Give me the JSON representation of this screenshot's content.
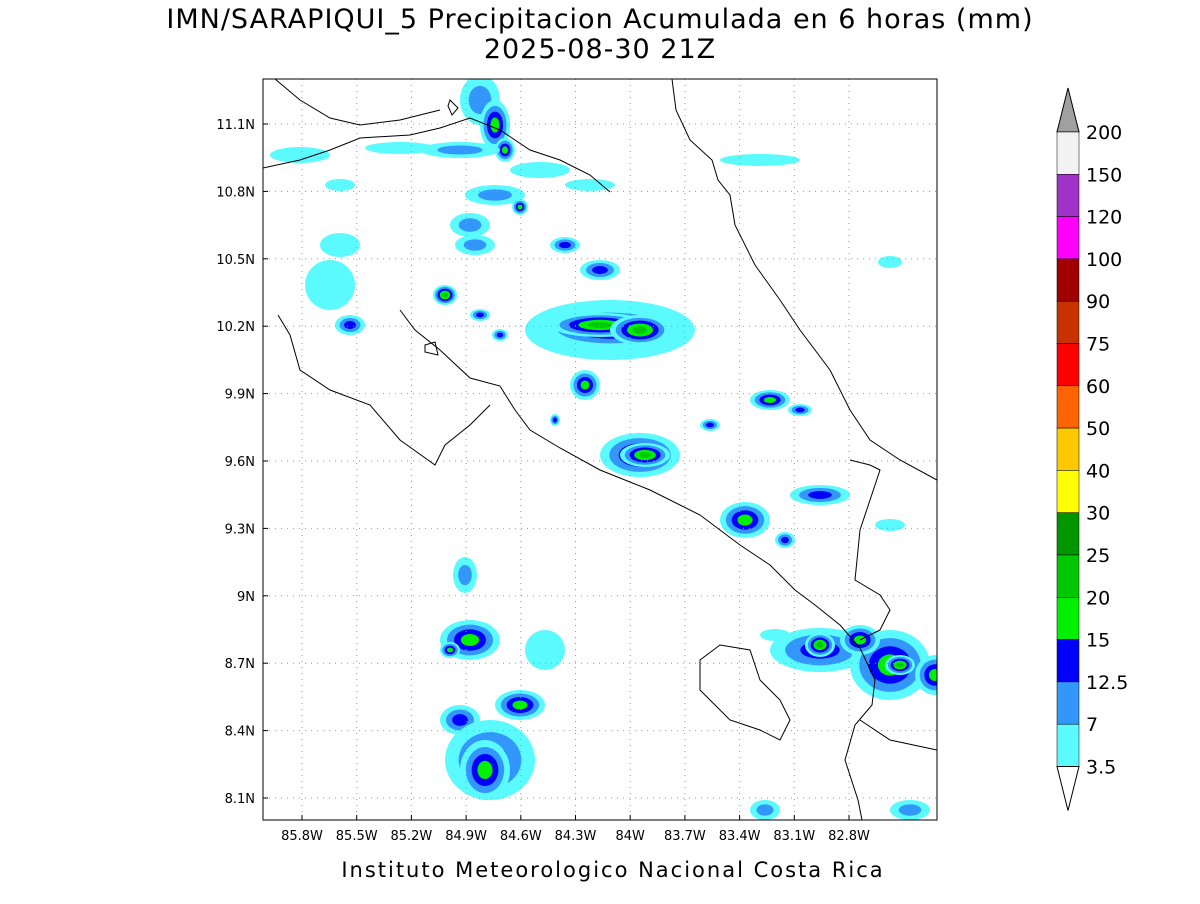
{
  "header": {
    "title": "IMN/SARAPIQUI_5 Precipitacion Acumulada en 6 horas (mm)",
    "subtitle": "2025-08-30 21Z"
  },
  "map": {
    "lon_labels": [
      "85.8W",
      "85.5W",
      "85.2W",
      "84.9W",
      "84.6W",
      "84.3W",
      "84W",
      "83.7W",
      "83.4W",
      "83.1W",
      "82.8W"
    ],
    "lat_labels": [
      "11.1N",
      "10.8N",
      "10.5N",
      "10.2N",
      "9.9N",
      "9.6N",
      "9.3N",
      "9N",
      "8.7N",
      "8.4N",
      "8.1N"
    ]
  },
  "colorbar": {
    "labels": [
      "200",
      "150",
      "120",
      "100",
      "90",
      "75",
      "60",
      "50",
      "40",
      "30",
      "25",
      "20",
      "15",
      "12.5",
      "7",
      "3.5"
    ],
    "top_color": "#a0a0a0",
    "bottom_color": "#ffffff",
    "colors": [
      "#f2f2f2",
      "#a032c8",
      "#ff00ff",
      "#a00000",
      "#c83200",
      "#ff0000",
      "#ff6400",
      "#ffc800",
      "#ffff00",
      "#009600",
      "#00c800",
      "#00f000",
      "#0000ff",
      "#3296fa",
      "#5afaff"
    ]
  },
  "footer": "Instituto Meteorologico Nacional Costa Rica"
}
